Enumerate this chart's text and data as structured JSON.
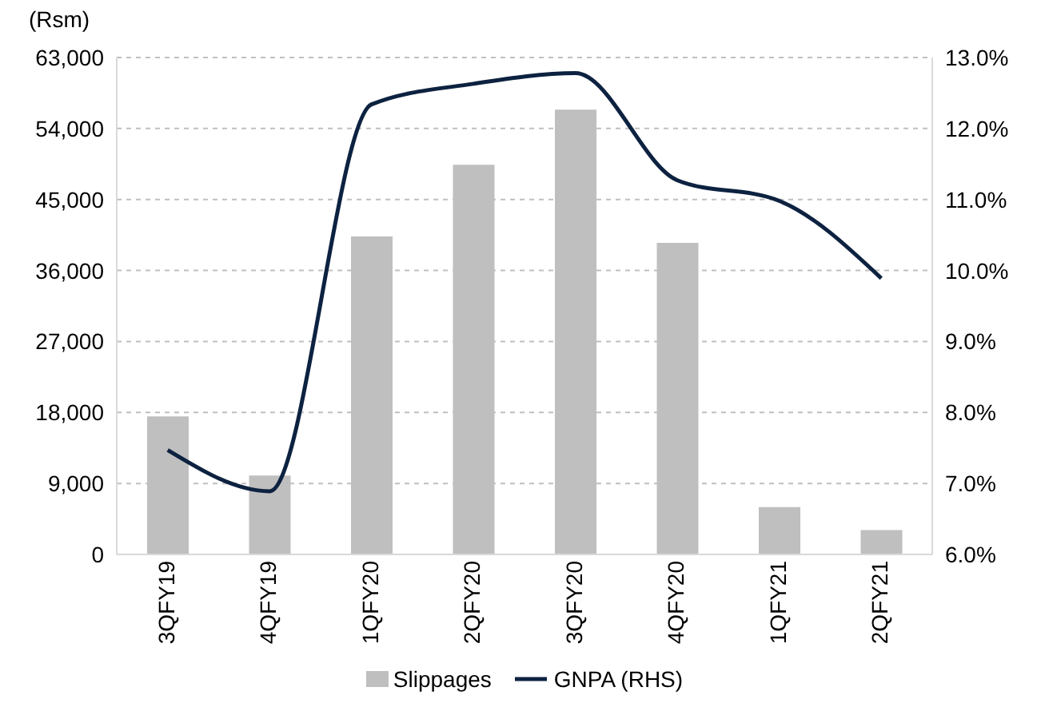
{
  "chart_data": {
    "type": "bar",
    "ylabel": "(Rsm)",
    "categories": [
      "3QFY19",
      "4QFY19",
      "1QFY20",
      "2QFY20",
      "3QFY20",
      "4QFY20",
      "1QFY21",
      "2QFY21"
    ],
    "series": [
      {
        "name": "Slippages",
        "color": "#bfbfbf",
        "values": [
          17500,
          10000,
          40300,
          49400,
          56400,
          39500,
          6000,
          3100
        ]
      },
      {
        "name": "GNPA (RHS)",
        "type": "line",
        "axis": "y2",
        "color": "#0d2240",
        "marker": "none",
        "values": [
          7.47,
          6.89,
          12.34,
          12.63,
          12.78,
          11.27,
          10.98,
          9.89
        ]
      }
    ],
    "ylim": [
      0,
      63000
    ],
    "yticks": [
      {
        "value": 0,
        "label": "0"
      },
      {
        "value": 9000,
        "label": "9,000"
      },
      {
        "value": 18000,
        "label": "18,000"
      },
      {
        "value": 27000,
        "label": "27,000"
      },
      {
        "value": 36000,
        "label": "36,000"
      },
      {
        "value": 45000,
        "label": "45,000"
      },
      {
        "value": 54000,
        "label": "54,000"
      },
      {
        "value": 63000,
        "label": "63,000"
      }
    ],
    "y2lim": [
      6,
      13
    ],
    "y2ticks": [
      {
        "value": 6,
        "label": "6.0%"
      },
      {
        "value": 7,
        "label": "7.0%"
      },
      {
        "value": 8,
        "label": "8.0%"
      },
      {
        "value": 9,
        "label": "9.0%"
      },
      {
        "value": 10,
        "label": "10.0%"
      },
      {
        "value": 11,
        "label": "11.0%"
      },
      {
        "value": 12,
        "label": "12.0%"
      },
      {
        "value": 13,
        "label": "13.0%"
      }
    ],
    "grid": "y",
    "legend": "bottom"
  }
}
